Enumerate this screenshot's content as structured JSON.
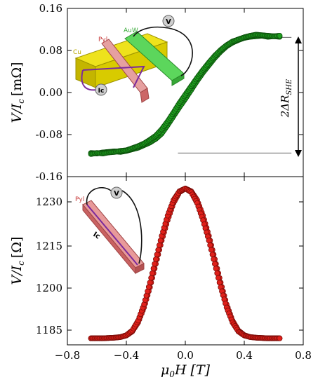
{
  "chart_data": [
    {
      "type": "scatter",
      "xlim": [
        -0.8,
        0.8
      ],
      "ylim": [
        -0.16,
        0.16
      ],
      "yticks": [
        "0.16",
        "0.08",
        "0.00",
        "-0.08",
        "-0.16"
      ],
      "ylabel": "V/I_c [mΩ]",
      "ylabel_main": "V/I",
      "ylabel_sub": "c",
      "ylabel_unit": "[mΩ]",
      "marker_color": "#1f9e1f",
      "marker_edge": "#0b4f0b",
      "annotation": "2ΔR_SHE",
      "annotation_main": "2ΔR",
      "annotation_sub": "SHE",
      "reference_levels": [
        0.105,
        -0.115
      ],
      "inset_labels": {
        "pyl": "Pyl",
        "auw": "AuW",
        "cu": "Cu",
        "v": "V",
        "ic": "Ic"
      },
      "series": [
        {
          "x": [
            -0.64,
            -0.6,
            -0.56,
            -0.52,
            -0.48,
            -0.44,
            -0.4,
            -0.36,
            -0.32,
            -0.28,
            -0.24,
            -0.2,
            -0.16,
            -0.12,
            -0.08,
            -0.04,
            0.0,
            0.04,
            0.08,
            0.12,
            0.16,
            0.2,
            0.24,
            0.28,
            0.32,
            0.36,
            0.4,
            0.44,
            0.48,
            0.52,
            0.56,
            0.6,
            0.64
          ],
          "y": [
            -0.115,
            -0.116,
            -0.114,
            -0.113,
            -0.112,
            -0.113,
            -0.111,
            -0.108,
            -0.105,
            -0.1,
            -0.095,
            -0.088,
            -0.078,
            -0.062,
            -0.045,
            -0.028,
            -0.012,
            0.005,
            0.022,
            0.038,
            0.052,
            0.066,
            0.078,
            0.088,
            0.095,
            0.1,
            0.104,
            0.106,
            0.107,
            0.108,
            0.106,
            0.107,
            0.106
          ]
        },
        {
          "x": [
            -0.64,
            -0.6,
            -0.56,
            -0.52,
            -0.48,
            -0.44,
            -0.4,
            -0.36,
            -0.32,
            -0.28,
            -0.24,
            -0.2,
            -0.16,
            -0.12,
            -0.08,
            -0.04,
            0.0,
            0.04,
            0.08,
            0.12,
            0.16,
            0.2,
            0.24,
            0.28,
            0.32,
            0.36,
            0.4,
            0.44,
            0.48,
            0.52,
            0.56,
            0.6,
            0.64
          ],
          "y": [
            -0.117,
            -0.115,
            -0.116,
            -0.114,
            -0.113,
            -0.111,
            -0.11,
            -0.106,
            -0.102,
            -0.097,
            -0.09,
            -0.082,
            -0.07,
            -0.055,
            -0.038,
            -0.02,
            -0.004,
            0.012,
            0.028,
            0.043,
            0.057,
            0.07,
            0.081,
            0.09,
            0.097,
            0.101,
            0.105,
            0.108,
            0.11,
            0.109,
            0.108,
            0.107,
            0.108
          ]
        }
      ]
    },
    {
      "type": "scatter",
      "xlim": [
        -0.8,
        0.8
      ],
      "ylim": [
        1182,
        1236
      ],
      "xticks": [
        "−0.8",
        "−0.4",
        "0.0",
        "0.4",
        "0.8"
      ],
      "yticks": [
        "1230",
        "1215",
        "1200",
        "1185"
      ],
      "xlabel": "μ0H [T]",
      "xlabel_main": "μ",
      "xlabel_sub": "0",
      "xlabel_rest": "H [T]",
      "ylabel": "V/I_c [Ω]",
      "ylabel_main": "V/I",
      "ylabel_sub": "c",
      "ylabel_unit": "[Ω]",
      "marker_color": "#e0201a",
      "marker_edge": "#7a0c08",
      "inset_labels": {
        "pyl": "Pyl",
        "v": "V",
        "ic": "Ic"
      },
      "series": [
        {
          "x": [
            -0.64,
            -0.6,
            -0.56,
            -0.52,
            -0.48,
            -0.44,
            -0.4,
            -0.36,
            -0.32,
            -0.28,
            -0.24,
            -0.2,
            -0.16,
            -0.12,
            -0.08,
            -0.04,
            0.0,
            0.04,
            0.08,
            0.12,
            0.16,
            0.2,
            0.24,
            0.28,
            0.32,
            0.36,
            0.4,
            0.44,
            0.48,
            0.52,
            0.56,
            0.6,
            0.64
          ],
          "y": [
            1184.1,
            1184.1,
            1184.1,
            1184.2,
            1184.3,
            1184.5,
            1185.0,
            1186.3,
            1189.2,
            1194.0,
            1200.5,
            1208.0,
            1215.5,
            1222.0,
            1227.5,
            1231.0,
            1232.2,
            1231.3,
            1228.5,
            1223.5,
            1217.0,
            1209.5,
            1202.0,
            1195.0,
            1189.8,
            1186.6,
            1185.1,
            1184.5,
            1184.3,
            1184.2,
            1184.1,
            1184.1,
            1184.1
          ]
        },
        {
          "x": [
            -0.64,
            -0.6,
            -0.56,
            -0.52,
            -0.48,
            -0.44,
            -0.4,
            -0.36,
            -0.32,
            -0.28,
            -0.24,
            -0.2,
            -0.16,
            -0.12,
            -0.08,
            -0.04,
            0.0,
            0.04,
            0.08,
            0.12,
            0.16,
            0.2,
            0.24,
            0.28,
            0.32,
            0.36,
            0.4,
            0.44,
            0.48,
            0.52,
            0.56,
            0.6,
            0.64
          ],
          "y": [
            1184.1,
            1184.1,
            1184.1,
            1184.2,
            1184.3,
            1184.5,
            1185.1,
            1186.6,
            1189.8,
            1195.0,
            1202.0,
            1209.5,
            1217.0,
            1223.5,
            1228.5,
            1231.3,
            1232.2,
            1231.0,
            1227.5,
            1222.0,
            1215.5,
            1208.0,
            1200.5,
            1194.0,
            1189.2,
            1186.3,
            1185.0,
            1184.5,
            1184.3,
            1184.2,
            1184.1,
            1184.1,
            1184.1
          ]
        }
      ]
    }
  ]
}
